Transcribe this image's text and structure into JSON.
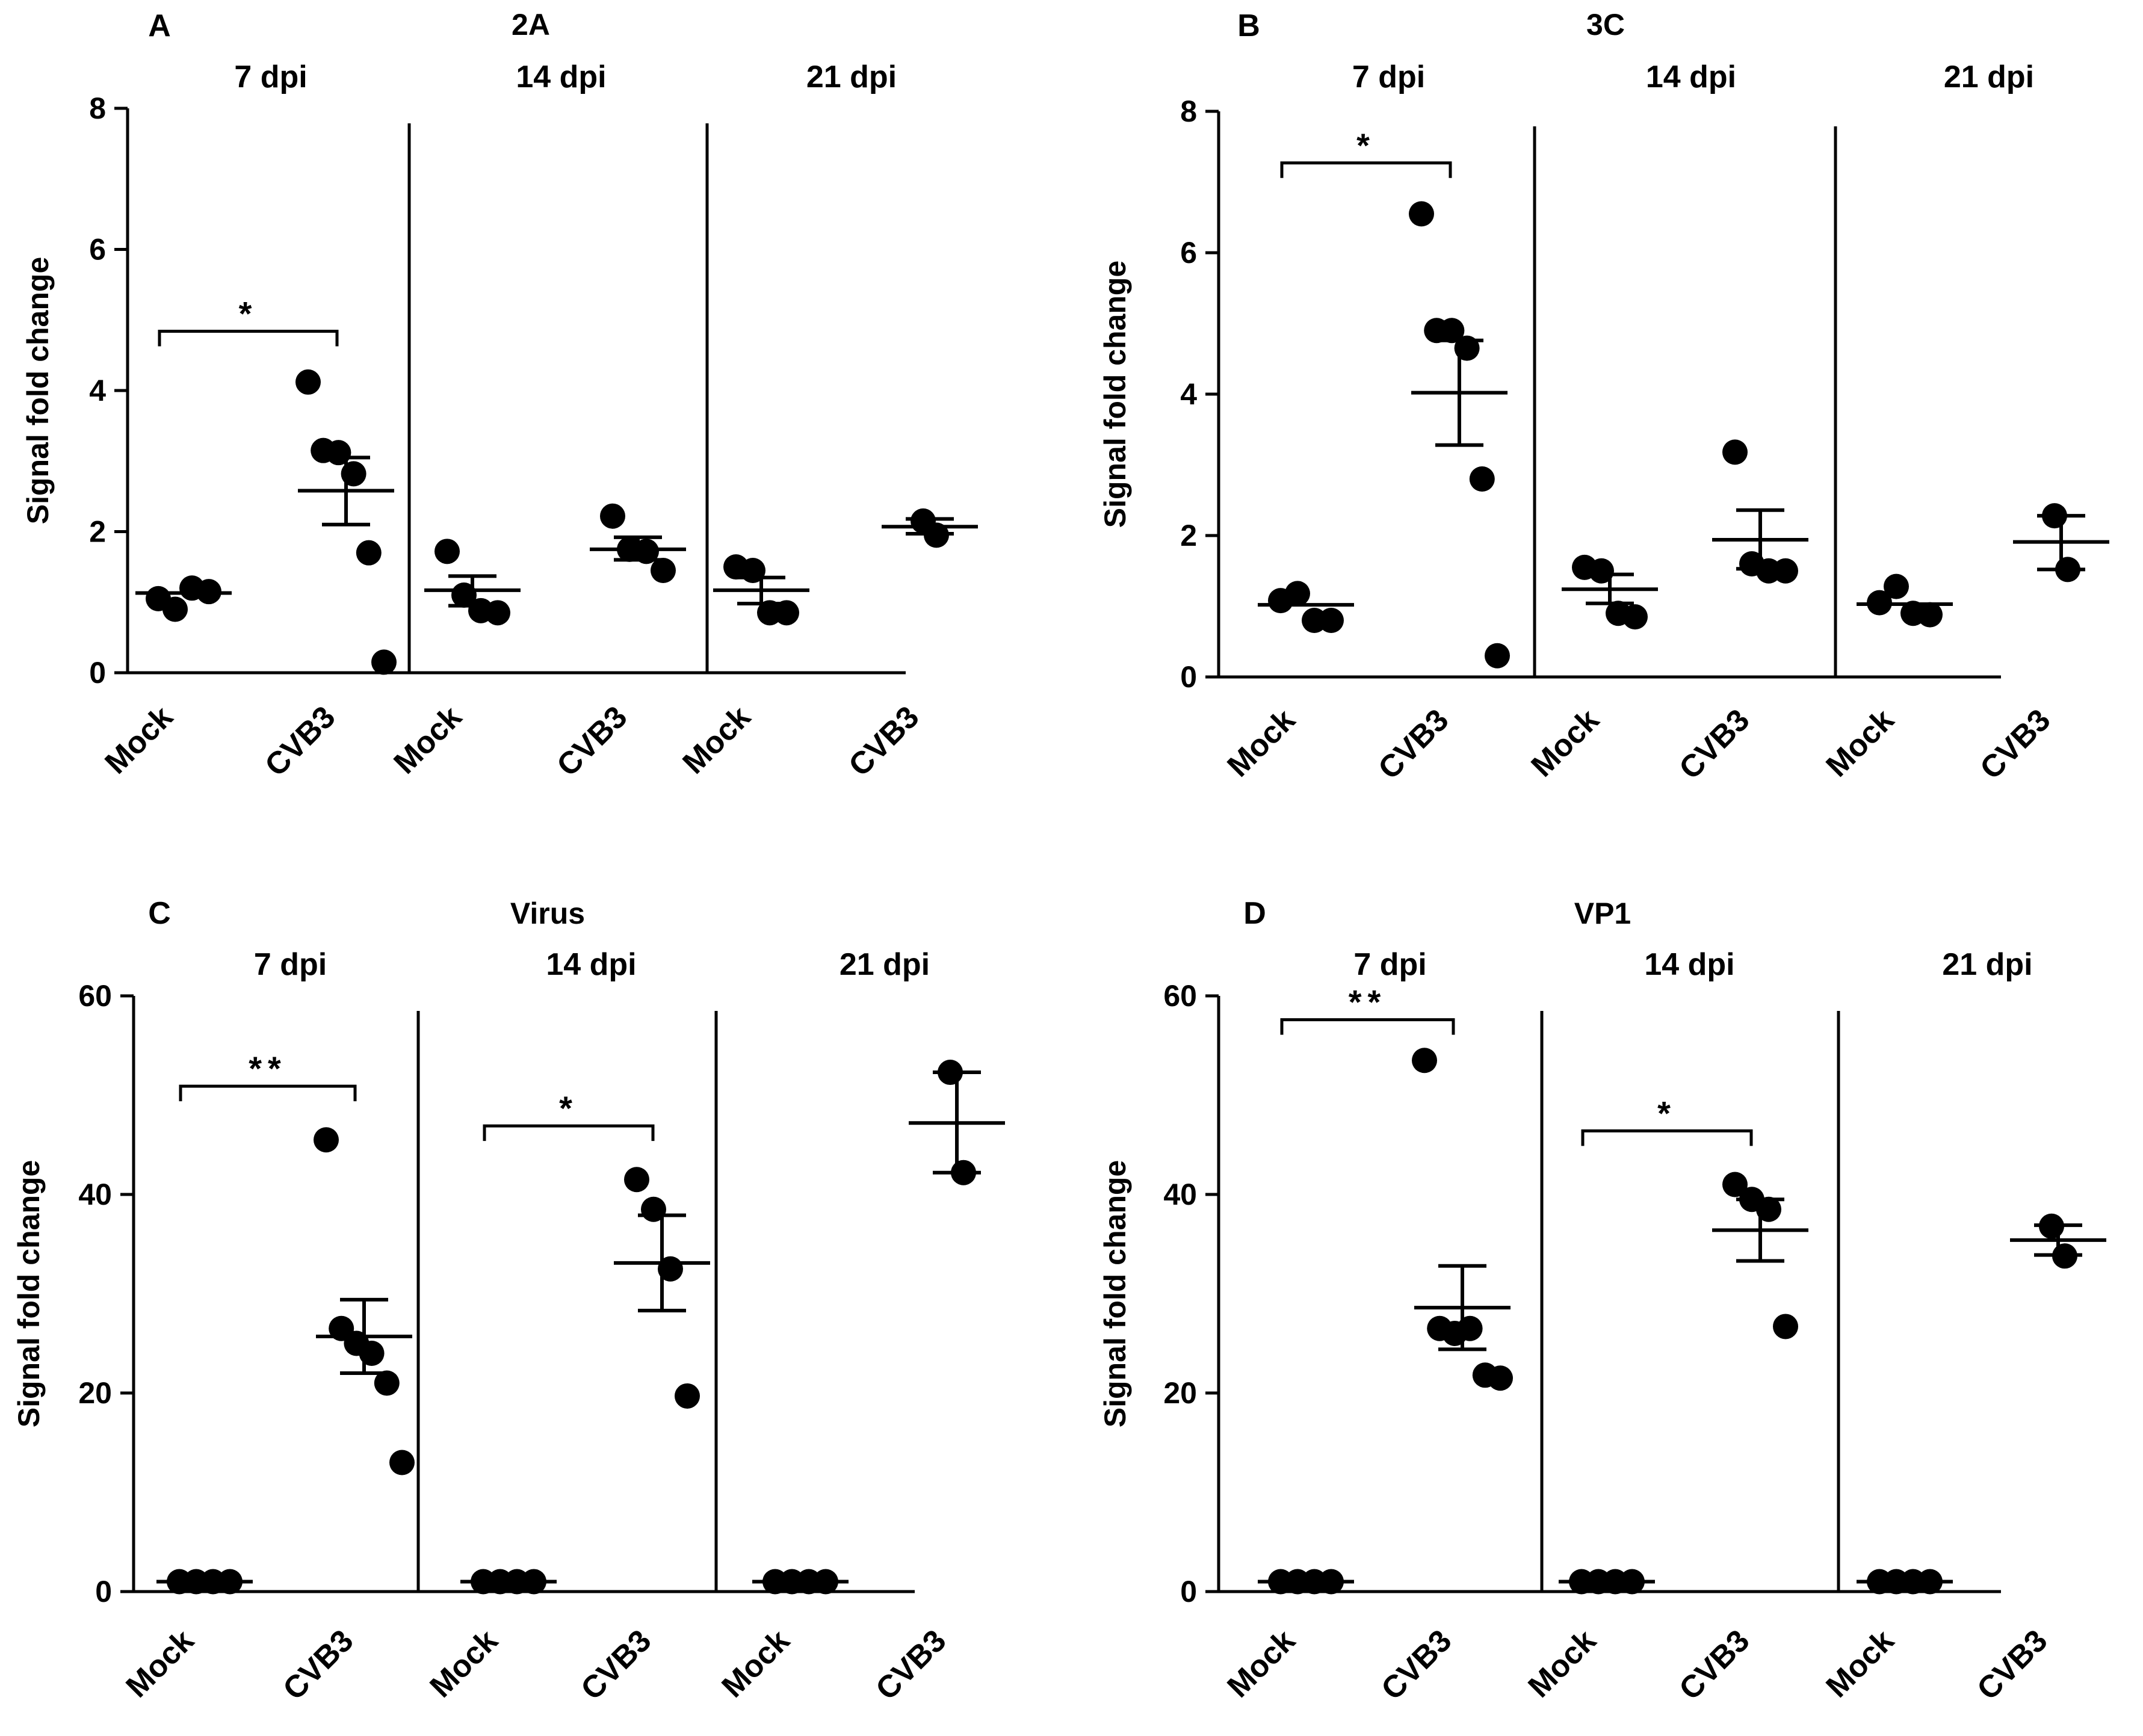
{
  "figure": {
    "layout": "2x2 grid of scatter plots with mean ± SEM"
  },
  "chart_data": [
    {
      "panel_letter": "A",
      "title": "2A",
      "type": "scatter",
      "ylabel": "Signal fold change",
      "ylim": [
        0,
        8
      ],
      "yticks": [
        0,
        2,
        4,
        6,
        8
      ],
      "groups": [
        {
          "timepoint": "7 dpi",
          "mock": {
            "label": "Mock",
            "points": [
              1.05,
              0.9,
              1.2,
              1.15
            ],
            "mean": 1.13
          },
          "cvb3": {
            "label": "CVB3",
            "points": [
              4.12,
              3.15,
              3.12,
              2.82,
              1.7,
              0.15
            ],
            "mean": 2.58,
            "sem_low": 2.1,
            "sem_high": 3.05
          },
          "significance": "*"
        },
        {
          "timepoint": "14 dpi",
          "mock": {
            "label": "Mock",
            "points": [
              1.72,
              1.1,
              0.88,
              0.85
            ],
            "mean": 1.17,
            "sem_low": 0.95,
            "sem_high": 1.37
          },
          "cvb3": {
            "label": "CVB3",
            "points": [
              2.22,
              1.75,
              1.72,
              1.45
            ],
            "mean": 1.75,
            "sem_low": 1.6,
            "sem_high": 1.92
          },
          "significance": ""
        },
        {
          "timepoint": "21 dpi",
          "mock": {
            "label": "Mock",
            "points": [
              1.5,
              1.45,
              0.85,
              0.85
            ],
            "mean": 1.17,
            "sem_low": 0.98,
            "sem_high": 1.35
          },
          "cvb3": {
            "label": "CVB3",
            "points": [
              2.15,
              1.95
            ],
            "mean": 2.07,
            "sem_low": 1.97,
            "sem_high": 2.18
          },
          "significance": ""
        }
      ]
    },
    {
      "panel_letter": "B",
      "title": "3C",
      "type": "scatter",
      "ylabel": "Signal fold change",
      "ylim": [
        0,
        8
      ],
      "yticks": [
        0,
        2,
        4,
        6,
        8
      ],
      "groups": [
        {
          "timepoint": "7 dpi",
          "mock": {
            "label": "Mock",
            "points": [
              1.08,
              1.18,
              0.8,
              0.8
            ],
            "mean": 1.02
          },
          "cvb3": {
            "label": "CVB3",
            "points": [
              6.55,
              4.9,
              4.9,
              4.65,
              2.8,
              0.3
            ],
            "mean": 4.02,
            "sem_low": 3.28,
            "sem_high": 4.76
          },
          "significance": "*"
        },
        {
          "timepoint": "14 dpi",
          "mock": {
            "label": "Mock",
            "points": [
              1.55,
              1.5,
              0.9,
              0.85
            ],
            "mean": 1.24,
            "sem_low": 1.04,
            "sem_high": 1.45
          },
          "cvb3": {
            "label": "CVB3",
            "points": [
              3.18,
              1.6,
              1.5,
              1.5
            ],
            "mean": 1.94,
            "sem_low": 1.53,
            "sem_high": 2.36
          },
          "significance": ""
        },
        {
          "timepoint": "21 dpi",
          "mock": {
            "label": "Mock",
            "points": [
              1.05,
              1.28,
              0.9,
              0.88
            ],
            "mean": 1.03
          },
          "cvb3": {
            "label": "CVB3",
            "points": [
              2.28,
              1.52
            ],
            "mean": 1.91,
            "sem_low": 1.52,
            "sem_high": 2.28
          },
          "significance": ""
        }
      ]
    },
    {
      "panel_letter": "C",
      "title": "Virus",
      "type": "scatter",
      "ylabel": "Signal fold change",
      "ylim": [
        0,
        60
      ],
      "yticks": [
        0,
        20,
        40,
        60
      ],
      "groups": [
        {
          "timepoint": "7 dpi",
          "mock": {
            "label": "Mock",
            "points": [
              1,
              1,
              1,
              1
            ],
            "mean": 1
          },
          "cvb3": {
            "label": "CVB3",
            "points": [
              45.5,
              26.5,
              25,
              24,
              21,
              13
            ],
            "mean": 25.7,
            "sem_low": 22,
            "sem_high": 29.4
          },
          "significance": "**"
        },
        {
          "timepoint": "14 dpi",
          "mock": {
            "label": "Mock",
            "points": [
              1,
              1,
              1,
              1
            ],
            "mean": 1
          },
          "cvb3": {
            "label": "CVB3",
            "points": [
              41.5,
              38.5,
              32.5,
              19.7
            ],
            "mean": 33.1,
            "sem_low": 28.3,
            "sem_high": 37.9
          },
          "significance": "*"
        },
        {
          "timepoint": "21 dpi",
          "mock": {
            "label": "Mock",
            "points": [
              1,
              1,
              1,
              1
            ],
            "mean": 1
          },
          "cvb3": {
            "label": "CVB3",
            "points": [
              52.3,
              42.2
            ],
            "mean": 47.2,
            "sem_low": 42.2,
            "sem_high": 52.3
          },
          "significance": ""
        }
      ]
    },
    {
      "panel_letter": "D",
      "title": "VP1",
      "type": "scatter",
      "ylabel": "Signal fold change",
      "ylim": [
        0,
        60
      ],
      "yticks": [
        0,
        20,
        40,
        60
      ],
      "groups": [
        {
          "timepoint": "7 dpi",
          "mock": {
            "label": "Mock",
            "points": [
              1,
              1,
              1,
              1
            ],
            "mean": 1
          },
          "cvb3": {
            "label": "CVB3",
            "points": [
              53.5,
              26.5,
              26,
              26.5,
              21.8,
              21.5
            ],
            "mean": 28.6,
            "sem_low": 24.4,
            "sem_high": 32.8
          },
          "significance": "**"
        },
        {
          "timepoint": "14 dpi",
          "mock": {
            "label": "Mock",
            "points": [
              1,
              1,
              1,
              1
            ],
            "mean": 1
          },
          "cvb3": {
            "label": "CVB3",
            "points": [
              41,
              39.5,
              38.5,
              26.7
            ],
            "mean": 36.4,
            "sem_low": 33.3,
            "sem_high": 39.5
          },
          "significance": "*"
        },
        {
          "timepoint": "21 dpi",
          "mock": {
            "label": "Mock",
            "points": [
              1,
              1,
              1,
              1
            ],
            "mean": 1
          },
          "cvb3": {
            "label": "CVB3",
            "points": [
              36.8,
              33.8
            ],
            "mean": 35.4,
            "sem_low": 33.9,
            "sem_high": 36.9
          },
          "significance": ""
        }
      ]
    }
  ]
}
